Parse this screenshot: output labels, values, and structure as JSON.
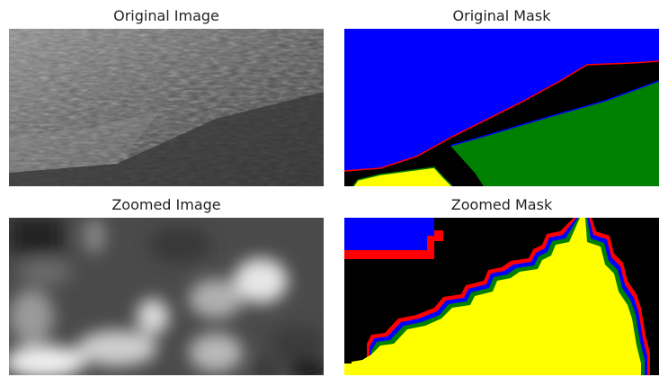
{
  "panels": [
    {
      "title": "Original Image"
    },
    {
      "title": "Original Mask"
    },
    {
      "title": "Zoomed Image"
    },
    {
      "title": "Zoomed Mask"
    }
  ],
  "colors": {
    "mask_blue": "#0000ff",
    "mask_green": "#008000",
    "mask_yellow": "#ffff00",
    "mask_red": "#ff0000",
    "mask_black": "#000000"
  }
}
